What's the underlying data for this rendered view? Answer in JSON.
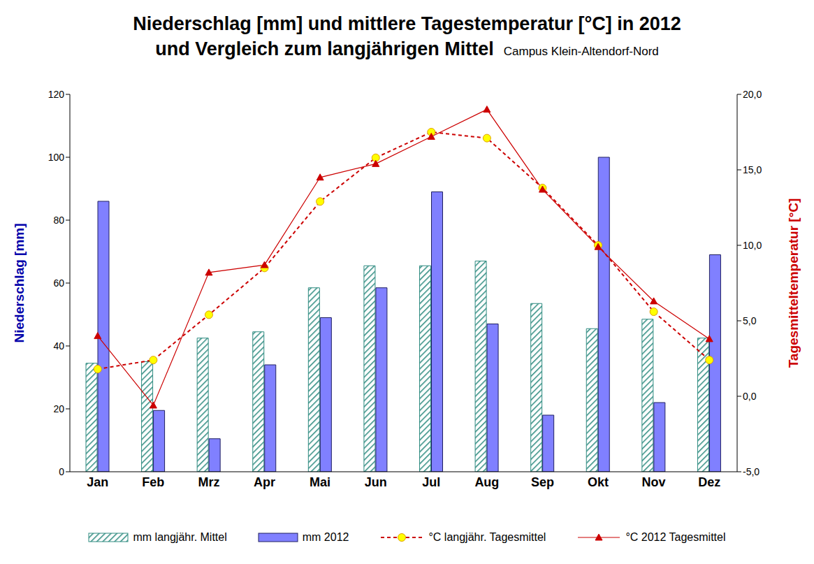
{
  "chart_data": {
    "type": "bar",
    "title": "Niederschlag [mm] und mittlere Tagestemperatur [°C] in 2012\nund Vergleich zum langjährigen Mittel",
    "subtitle": "Campus Klein-Altendorf-Nord",
    "categories": [
      "Jan",
      "Feb",
      "Mrz",
      "Apr",
      "Mai",
      "Jun",
      "Jul",
      "Aug",
      "Sep",
      "Okt",
      "Nov",
      "Dez"
    ],
    "y_label": "Niederschlag [mm]",
    "y2_label": "Tagesmitteltemperatur [°C]",
    "ylim": [
      0,
      120
    ],
    "yticks": [
      0,
      20,
      40,
      60,
      80,
      100,
      120
    ],
    "y2lim": [
      -5,
      20
    ],
    "y2ticks": [
      {
        "value": -5,
        "label": "-5,0"
      },
      {
        "value": 0,
        "label": "0,0"
      },
      {
        "value": 5,
        "label": "5,0"
      },
      {
        "value": 10,
        "label": "10,0"
      },
      {
        "value": 15,
        "label": "15,0"
      },
      {
        "value": 20,
        "label": "20,0"
      }
    ],
    "grid": false,
    "legend": "bottom",
    "series": [
      {
        "name": "mm langjähr. Mittel",
        "type": "bar",
        "color": "#2e8b80",
        "values": [
          34.5,
          35,
          42.5,
          44.5,
          58.5,
          65.5,
          65.5,
          67,
          53.5,
          45.5,
          48.5,
          42.5
        ]
      },
      {
        "name": "mm 2012",
        "type": "bar",
        "color": "#8080ff",
        "values": [
          86,
          19.5,
          10.5,
          34,
          49,
          58.5,
          89,
          47,
          18,
          100,
          22,
          69
        ]
      },
      {
        "name": "°C langjähr. Tagesmittel",
        "type": "line",
        "axis": "y2",
        "color": "#cc0000",
        "line_style": "dashed",
        "marker": "circle",
        "values": [
          1.8,
          2.4,
          5.4,
          8.5,
          12.9,
          15.8,
          17.5,
          17.1,
          13.8,
          10.0,
          5.6,
          2.4
        ]
      },
      {
        "name": "°C 2012 Tagesmittel",
        "type": "line",
        "axis": "y2",
        "color": "#cc0000",
        "line_style": "solid",
        "marker": "triangle",
        "values": [
          4.0,
          -0.6,
          8.2,
          8.7,
          14.5,
          15.4,
          17.2,
          19.0,
          13.7,
          9.9,
          6.3,
          3.8
        ]
      }
    ]
  }
}
